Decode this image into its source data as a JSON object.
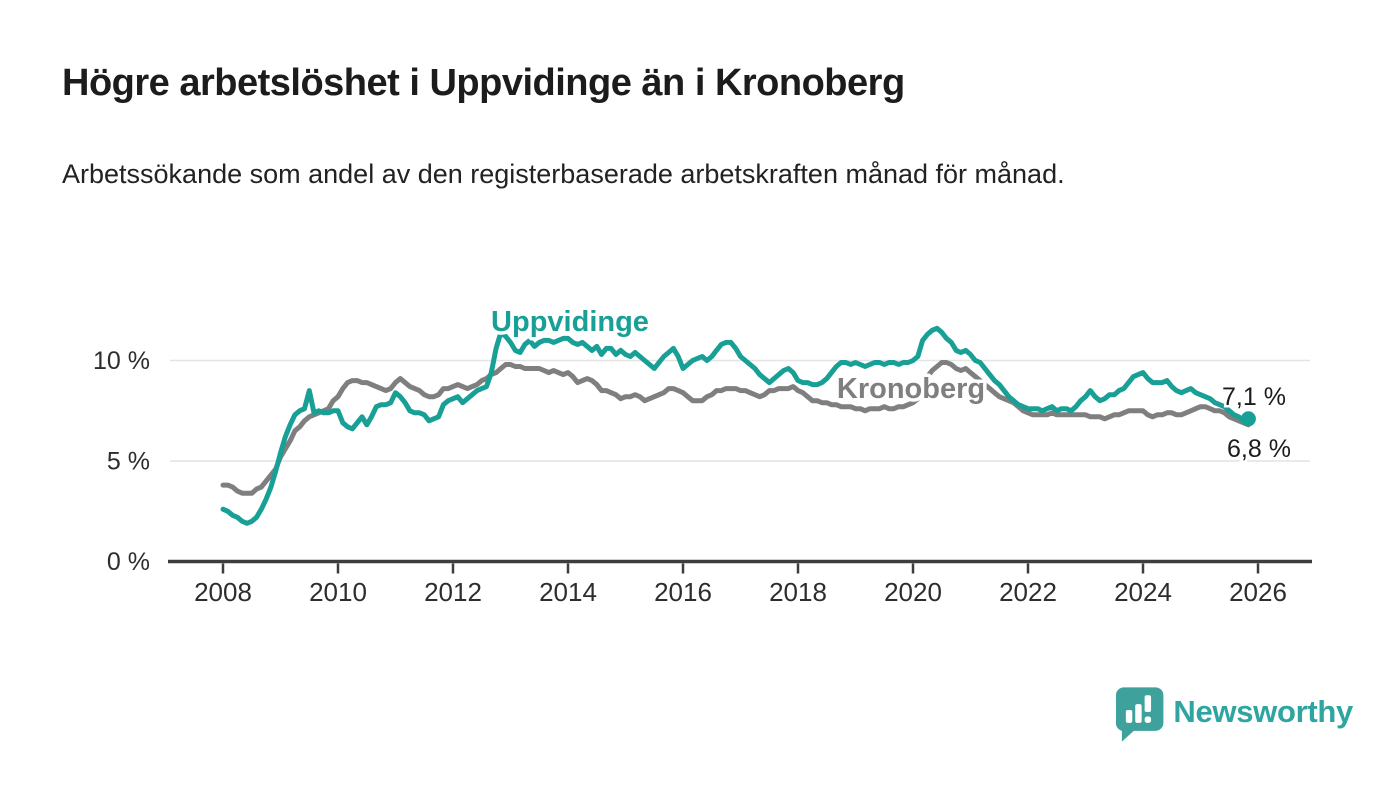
{
  "header": {
    "title": "Högre arbetslöshet i Uppvidinge än i Kronoberg",
    "subtitle": "Arbetssökande som andel av den registerbaserade arbetskraften månad för månad."
  },
  "colors": {
    "uppvidinge": "#18A096",
    "kronoberg": "#7f7f7f",
    "grid": "#e4e4e4",
    "axis": "#3d3d3d",
    "tick_text": "#2d2d2d",
    "value_text": "#1c1c1c",
    "logo_bubble": "#3FA19C",
    "logo_text": "#2EA5A0"
  },
  "chart_data": {
    "type": "line",
    "title": "",
    "xlabel": "",
    "ylabel": "",
    "x_unit": "month",
    "x_start": "2008-01",
    "x_end": "2025-11",
    "x_tick_labels": [
      "2008",
      "2010",
      "2012",
      "2014",
      "2016",
      "2018",
      "2020",
      "2022",
      "2024",
      "2026"
    ],
    "x_tick_years": [
      2008,
      2010,
      2012,
      2014,
      2016,
      2018,
      2020,
      2022,
      2024,
      2026
    ],
    "y_ticks": [
      {
        "value": 0,
        "label": "0 %"
      },
      {
        "value": 5,
        "label": "5 %"
      },
      {
        "value": 10,
        "label": "10 %"
      }
    ],
    "ylim": [
      0,
      12.4
    ],
    "grid": "horizontal",
    "legend": "inline-series-labels",
    "series": [
      {
        "name": "Uppvidinge",
        "color": "#18A096",
        "end_label": "7,1 %",
        "last_value": 7.1,
        "marker_on_last": true,
        "values": [
          2.6,
          2.5,
          2.3,
          2.2,
          2.0,
          1.9,
          2.0,
          2.2,
          2.6,
          3.1,
          3.7,
          4.5,
          5.4,
          6.2,
          6.8,
          7.3,
          7.5,
          7.6,
          8.5,
          7.4,
          7.5,
          7.4,
          7.4,
          7.5,
          7.5,
          6.9,
          6.7,
          6.6,
          6.9,
          7.2,
          6.8,
          7.2,
          7.7,
          7.8,
          7.8,
          7.9,
          8.4,
          8.2,
          7.9,
          7.5,
          7.4,
          7.4,
          7.3,
          7.0,
          7.1,
          7.2,
          7.8,
          8.0,
          8.1,
          8.2,
          7.9,
          8.1,
          8.3,
          8.5,
          8.6,
          8.7,
          9.4,
          10.6,
          11.4,
          11.2,
          10.9,
          10.5,
          10.4,
          10.8,
          11.0,
          10.7,
          10.9,
          11.0,
          11.0,
          10.9,
          11.0,
          11.1,
          11.1,
          10.9,
          10.8,
          10.9,
          10.7,
          10.5,
          10.7,
          10.3,
          10.6,
          10.6,
          10.3,
          10.5,
          10.3,
          10.2,
          10.4,
          10.2,
          10.0,
          9.8,
          9.6,
          9.9,
          10.2,
          10.4,
          10.6,
          10.2,
          9.6,
          9.8,
          10.0,
          10.1,
          10.2,
          10.0,
          10.2,
          10.5,
          10.8,
          10.9,
          10.9,
          10.6,
          10.2,
          10.0,
          9.8,
          9.6,
          9.3,
          9.1,
          8.9,
          9.1,
          9.3,
          9.5,
          9.6,
          9.4,
          9.0,
          8.9,
          8.9,
          8.8,
          8.8,
          8.9,
          9.1,
          9.4,
          9.7,
          9.9,
          9.9,
          9.8,
          9.9,
          9.8,
          9.7,
          9.8,
          9.9,
          9.9,
          9.8,
          9.9,
          9.9,
          9.8,
          9.9,
          9.9,
          10.0,
          10.2,
          11.0,
          11.3,
          11.5,
          11.6,
          11.4,
          11.1,
          10.9,
          10.5,
          10.4,
          10.5,
          10.3,
          10.0,
          9.9,
          9.6,
          9.3,
          9.0,
          8.8,
          8.5,
          8.2,
          8.0,
          7.8,
          7.7,
          7.6,
          7.6,
          7.6,
          7.5,
          7.6,
          7.7,
          7.5,
          7.6,
          7.6,
          7.5,
          7.7,
          8.0,
          8.2,
          8.5,
          8.2,
          8.0,
          8.1,
          8.3,
          8.3,
          8.5,
          8.6,
          8.9,
          9.2,
          9.3,
          9.4,
          9.1,
          8.9,
          8.9,
          8.9,
          9.0,
          8.7,
          8.5,
          8.4,
          8.5,
          8.6,
          8.4,
          8.3,
          8.2,
          8.1,
          7.9,
          7.8,
          7.7,
          7.5,
          7.3,
          7.2,
          7.0,
          7.1
        ]
      },
      {
        "name": "Kronoberg",
        "color": "#7f7f7f",
        "end_label": "6,8 %",
        "last_value": 6.8,
        "marker_on_last": false,
        "values": [
          3.8,
          3.8,
          3.7,
          3.5,
          3.4,
          3.4,
          3.4,
          3.6,
          3.7,
          4.0,
          4.3,
          4.6,
          5.2,
          5.6,
          6.0,
          6.5,
          6.7,
          7.0,
          7.2,
          7.3,
          7.4,
          7.5,
          7.6,
          8.0,
          8.2,
          8.6,
          8.9,
          9.0,
          9.0,
          8.9,
          8.9,
          8.8,
          8.7,
          8.6,
          8.5,
          8.6,
          8.9,
          9.1,
          8.9,
          8.7,
          8.6,
          8.5,
          8.3,
          8.2,
          8.2,
          8.3,
          8.6,
          8.6,
          8.7,
          8.8,
          8.7,
          8.6,
          8.7,
          8.8,
          9.0,
          9.1,
          9.3,
          9.4,
          9.6,
          9.8,
          9.8,
          9.7,
          9.7,
          9.6,
          9.6,
          9.6,
          9.6,
          9.5,
          9.4,
          9.5,
          9.4,
          9.3,
          9.4,
          9.2,
          8.9,
          9.0,
          9.1,
          9.0,
          8.8,
          8.5,
          8.5,
          8.4,
          8.3,
          8.1,
          8.2,
          8.2,
          8.3,
          8.2,
          8.0,
          8.1,
          8.2,
          8.3,
          8.4,
          8.6,
          8.6,
          8.5,
          8.4,
          8.2,
          8.0,
          8.0,
          8.0,
          8.2,
          8.3,
          8.5,
          8.5,
          8.6,
          8.6,
          8.6,
          8.5,
          8.5,
          8.4,
          8.3,
          8.2,
          8.3,
          8.5,
          8.5,
          8.6,
          8.6,
          8.6,
          8.7,
          8.5,
          8.4,
          8.2,
          8.0,
          8.0,
          7.9,
          7.9,
          7.8,
          7.8,
          7.7,
          7.7,
          7.7,
          7.6,
          7.6,
          7.5,
          7.6,
          7.6,
          7.6,
          7.7,
          7.6,
          7.6,
          7.7,
          7.7,
          7.8,
          7.9,
          8.1,
          8.7,
          9.2,
          9.5,
          9.7,
          9.9,
          9.9,
          9.8,
          9.6,
          9.5,
          9.6,
          9.4,
          9.2,
          9.0,
          8.8,
          8.6,
          8.4,
          8.2,
          8.1,
          8.0,
          7.9,
          7.7,
          7.5,
          7.4,
          7.3,
          7.3,
          7.3,
          7.3,
          7.4,
          7.3,
          7.3,
          7.3,
          7.3,
          7.3,
          7.3,
          7.3,
          7.2,
          7.2,
          7.2,
          7.1,
          7.2,
          7.3,
          7.3,
          7.4,
          7.5,
          7.5,
          7.5,
          7.5,
          7.3,
          7.2,
          7.3,
          7.3,
          7.4,
          7.4,
          7.3,
          7.3,
          7.4,
          7.5,
          7.6,
          7.7,
          7.7,
          7.6,
          7.5,
          7.5,
          7.4,
          7.2,
          7.1,
          7.0,
          6.9,
          6.8
        ]
      }
    ]
  },
  "footer": {
    "brand": "Newsworthy"
  }
}
